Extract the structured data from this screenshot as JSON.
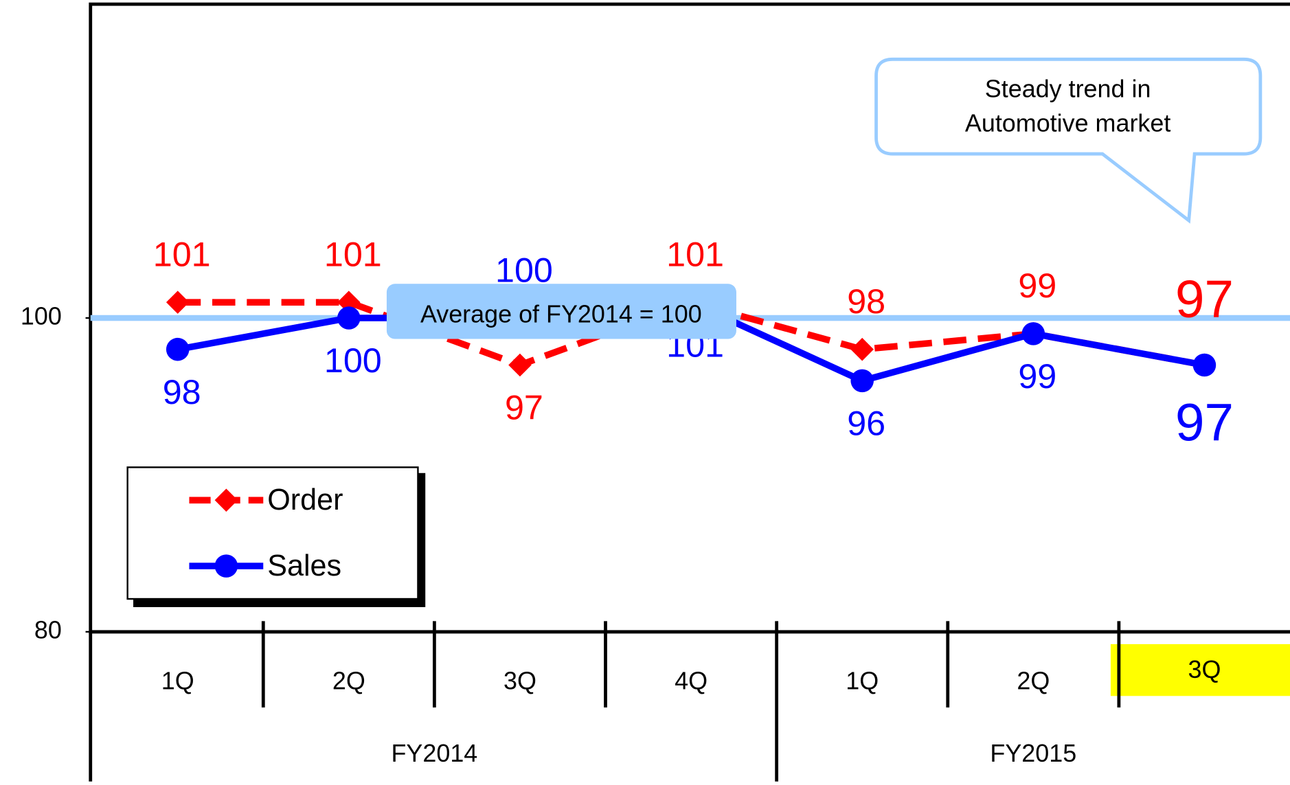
{
  "chart_data": {
    "type": "line",
    "categories": [
      "1Q",
      "2Q",
      "3Q",
      "4Q",
      "1Q",
      "2Q",
      "3Q"
    ],
    "groups": [
      {
        "label": "FY2014",
        "span": 4
      },
      {
        "label": "FY2015",
        "span": 3
      }
    ],
    "series": [
      {
        "name": "Order",
        "color": "#ff0000",
        "style": "dashed",
        "marker": "diamond",
        "values": [
          101,
          101,
          97,
          101,
          98,
          99,
          97
        ]
      },
      {
        "name": "Sales",
        "color": "#0000ff",
        "style": "solid",
        "marker": "circle",
        "values": [
          98,
          100,
          100,
          101,
          96,
          99,
          97
        ]
      }
    ],
    "ylim": [
      80,
      120
    ],
    "yticks": [
      80,
      100
    ],
    "reference_line": {
      "value": 100,
      "label": "Average of FY2014 = 100",
      "color": "#99ccff"
    },
    "callout": [
      "Steady trend in",
      "Automotive market"
    ],
    "highlight": {
      "category": 6,
      "color": "#ffff00"
    },
    "legend": "lower left"
  }
}
